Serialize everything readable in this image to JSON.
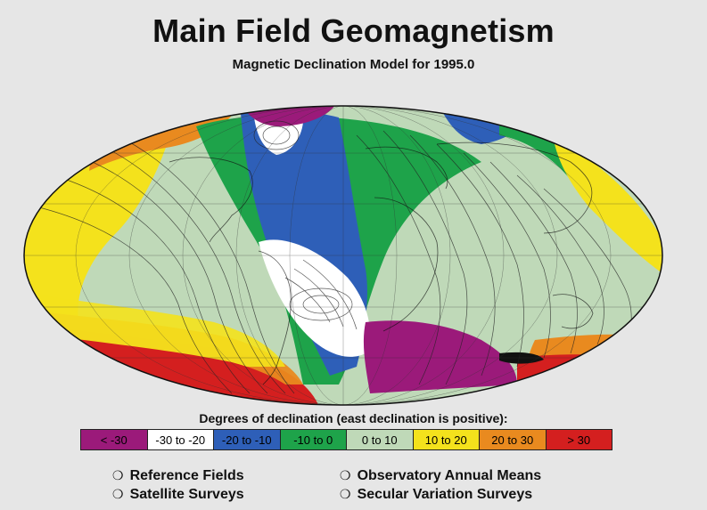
{
  "title": "Main Field Geomagnetism",
  "subtitle": "Magnetic Declination Model for 1995.0",
  "legend": {
    "title": "Degrees of declination (east declination is positive):",
    "items": [
      {
        "label": "< -30",
        "color": "#9b1a7a",
        "text_color": "#000000"
      },
      {
        "label": "-30 to -20",
        "color": "#ffffff",
        "text_color": "#000000"
      },
      {
        "label": "-20 to -10",
        "color": "#2e5fb8",
        "text_color": "#000000"
      },
      {
        "label": "-10 to 0",
        "color": "#1ea34a",
        "text_color": "#000000"
      },
      {
        "label": "0 to 10",
        "color": "#bfd9b8",
        "text_color": "#000000"
      },
      {
        "label": "10 to 20",
        "color": "#f4e21c",
        "text_color": "#000000"
      },
      {
        "label": "20 to 30",
        "color": "#e98a1f",
        "text_color": "#000000"
      },
      {
        "label": "> 30",
        "color": "#d41f1f",
        "text_color": "#000000"
      }
    ]
  },
  "links": {
    "left": [
      {
        "label": "Reference Fields",
        "icon": "circle-bullet-icon"
      },
      {
        "label": "Satellite Surveys",
        "icon": "circle-bullet-icon"
      }
    ],
    "right": [
      {
        "label": "Observatory Annual Means",
        "icon": "circle-bullet-icon"
      },
      {
        "label": "Secular Variation Surveys",
        "icon": "circle-bullet-icon"
      }
    ]
  },
  "map": {
    "projection": "Hammer/Mollweide (global ellipse)",
    "colors": {
      "red": "#d41f1f",
      "orange": "#e98a1f",
      "yellow": "#f4e21c",
      "light_green": "#bfd9b8",
      "green": "#1ea34a",
      "blue": "#2e5fb8",
      "white": "#ffffff",
      "purple": "#9b1a7a"
    }
  }
}
